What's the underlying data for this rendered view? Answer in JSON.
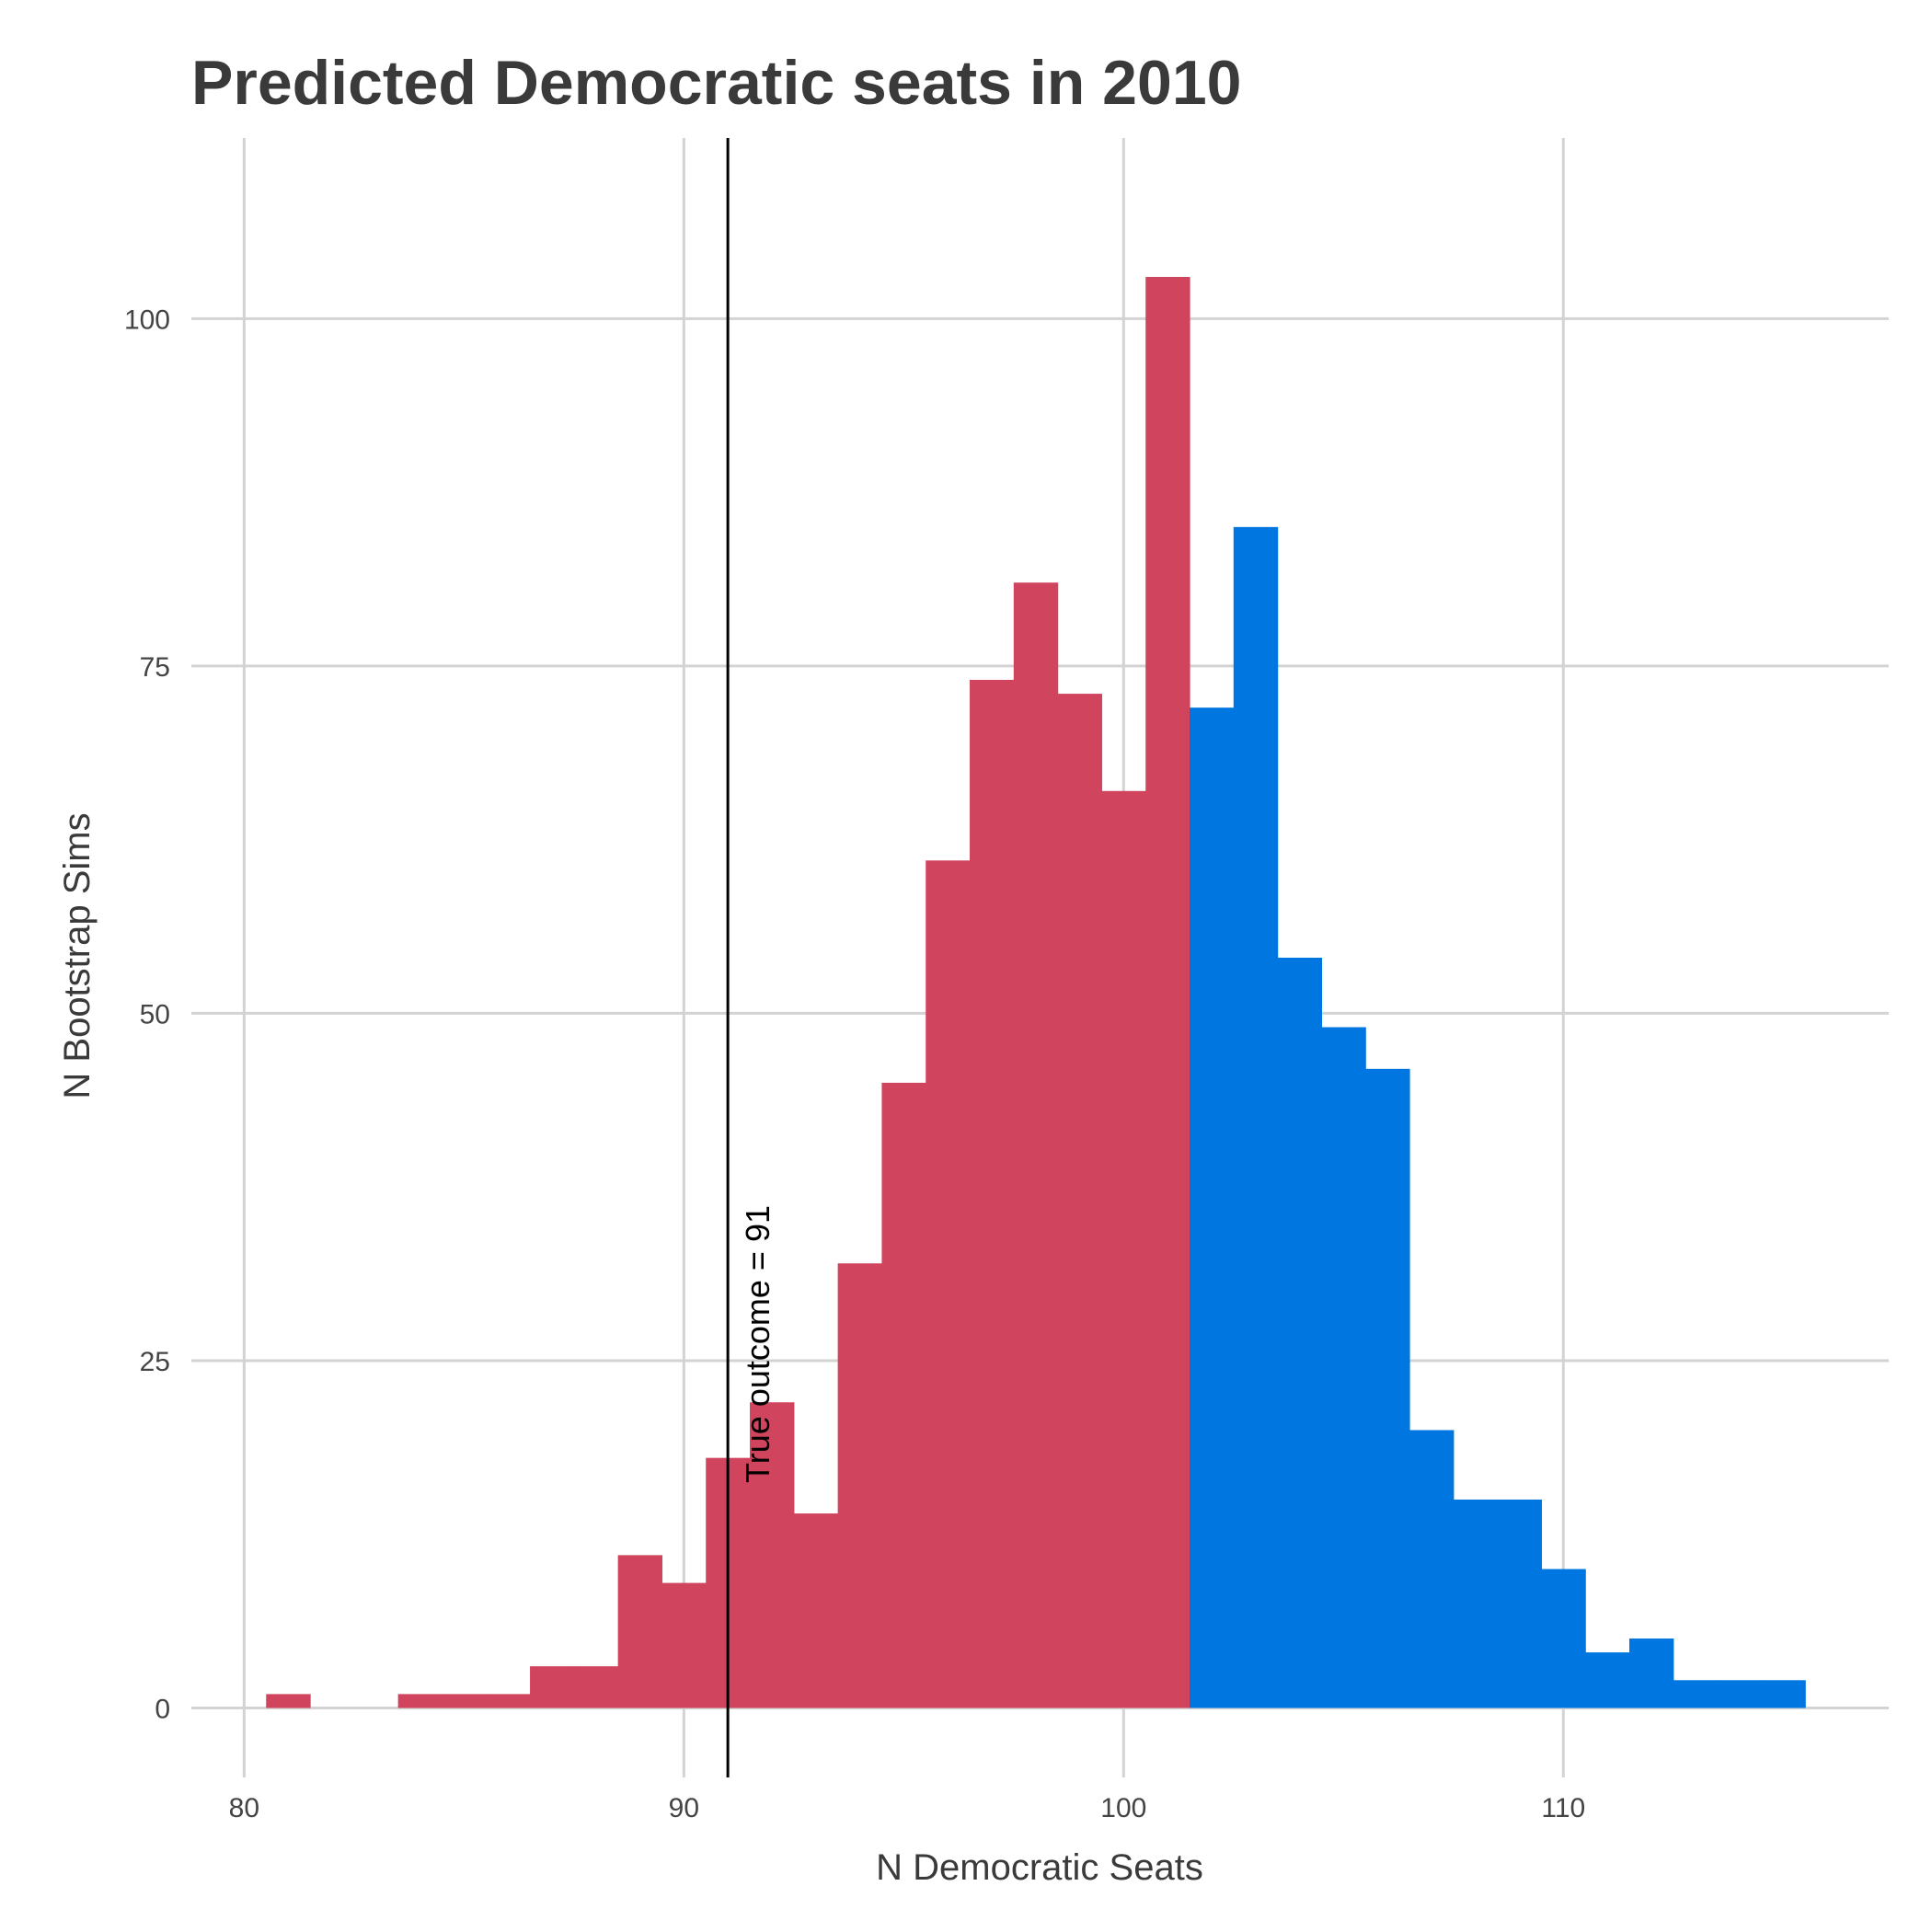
{
  "chart_data": {
    "type": "bar",
    "title": "Predicted Democratic seats in 2010",
    "xlabel": "N Democratic Seats",
    "ylabel": "N Bootstrap Sims",
    "xlim": [
      78.8,
      117.4
    ],
    "ylim": [
      -5,
      113
    ],
    "x_ticks": [
      80,
      90,
      100,
      110
    ],
    "y_ticks": [
      0,
      25,
      50,
      75,
      100
    ],
    "grid": true,
    "bin_width": 1,
    "bins": [
      {
        "x": 81,
        "count": 1,
        "party": "rep"
      },
      {
        "x": 84,
        "count": 1,
        "party": "rep"
      },
      {
        "x": 85,
        "count": 1,
        "party": "rep"
      },
      {
        "x": 86,
        "count": 1,
        "party": "rep"
      },
      {
        "x": 87,
        "count": 3,
        "party": "rep"
      },
      {
        "x": 88,
        "count": 3,
        "party": "rep"
      },
      {
        "x": 89,
        "count": 11,
        "party": "rep"
      },
      {
        "x": 90,
        "count": 9,
        "party": "rep"
      },
      {
        "x": 91,
        "count": 18,
        "party": "rep"
      },
      {
        "x": 92,
        "count": 22,
        "party": "rep"
      },
      {
        "x": 93,
        "count": 14,
        "party": "rep"
      },
      {
        "x": 94,
        "count": 32,
        "party": "rep"
      },
      {
        "x": 95,
        "count": 45,
        "party": "rep"
      },
      {
        "x": 96,
        "count": 61,
        "party": "rep"
      },
      {
        "x": 97,
        "count": 74,
        "party": "rep"
      },
      {
        "x": 98,
        "count": 81,
        "party": "rep"
      },
      {
        "x": 99,
        "count": 73,
        "party": "rep"
      },
      {
        "x": 100,
        "count": 66,
        "party": "rep"
      },
      {
        "x": 101,
        "count": 103,
        "party": "rep"
      },
      {
        "x": 102,
        "count": 72,
        "party": "dem"
      },
      {
        "x": 103,
        "count": 85,
        "party": "dem"
      },
      {
        "x": 104,
        "count": 54,
        "party": "dem"
      },
      {
        "x": 105,
        "count": 49,
        "party": "dem"
      },
      {
        "x": 106,
        "count": 46,
        "party": "dem"
      },
      {
        "x": 107,
        "count": 20,
        "party": "dem"
      },
      {
        "x": 108,
        "count": 15,
        "party": "dem"
      },
      {
        "x": 109,
        "count": 15,
        "party": "dem"
      },
      {
        "x": 110,
        "count": 10,
        "party": "dem"
      },
      {
        "x": 111,
        "count": 4,
        "party": "dem"
      },
      {
        "x": 112,
        "count": 5,
        "party": "dem"
      },
      {
        "x": 113,
        "count": 2,
        "party": "dem"
      },
      {
        "x": 114,
        "count": 2,
        "party": "dem"
      },
      {
        "x": 115,
        "count": 2,
        "party": "dem"
      }
    ],
    "colors": {
      "rep": "#D0445E",
      "dem": "#0077E0"
    },
    "reference_line": {
      "x": 91,
      "label": "True outcome = 91",
      "color": "#000000"
    }
  }
}
